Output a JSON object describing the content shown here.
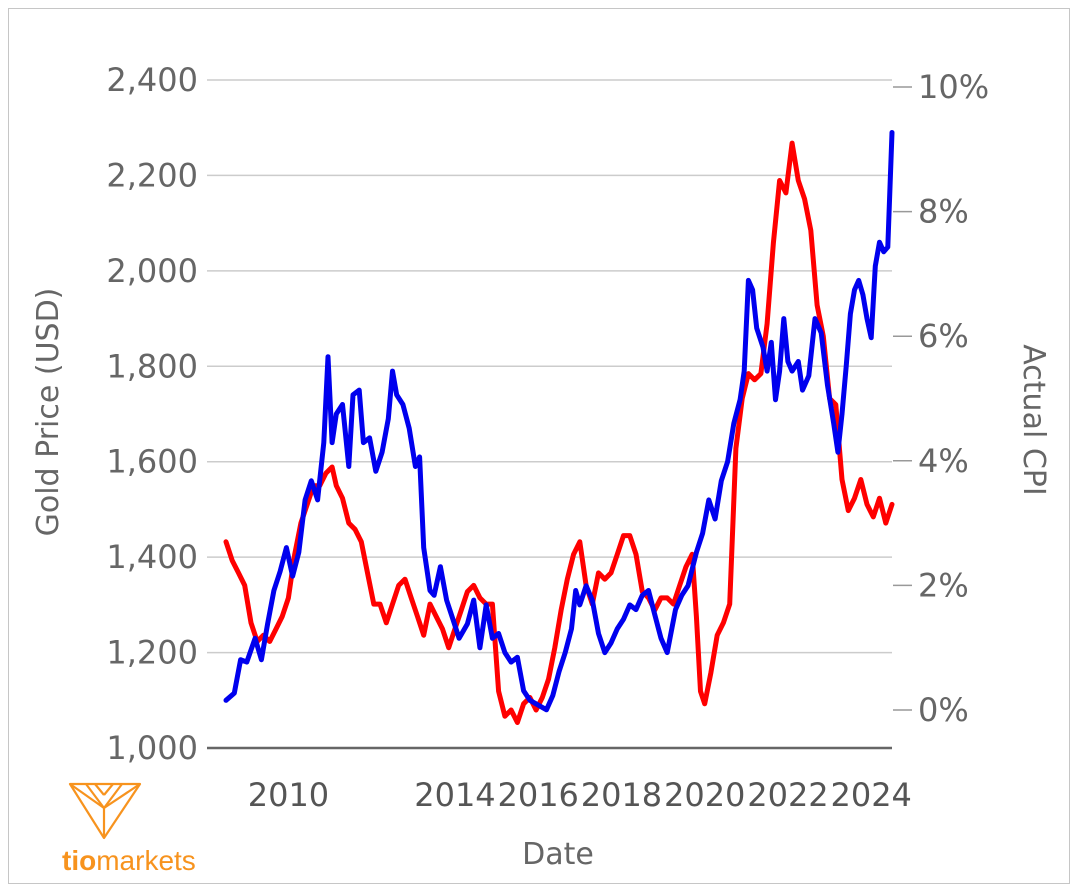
{
  "chart_data": {
    "type": "line",
    "xlabel": "Date",
    "ylabel_left": "Gold Price (USD)",
    "ylabel_right": "Actual CPI",
    "xlim": [
      2009,
      2024.6
    ],
    "ylim_left": [
      1000,
      2400
    ],
    "ylim_right": [
      -0.6,
      10
    ],
    "x_ticks": [
      "2010",
      "2014",
      "2016",
      "2018",
      "2020",
      "2022",
      "2024"
    ],
    "x_tick_values": [
      2010,
      2014,
      2016,
      2018,
      2020,
      2022,
      2024
    ],
    "y_left_ticks": [
      "1,000",
      "1,200",
      "1,400",
      "1,600",
      "1,800",
      "2,000",
      "2,200",
      "2,400"
    ],
    "y_left_tick_values": [
      1000,
      1200,
      1400,
      1600,
      1800,
      2000,
      2200,
      2400
    ],
    "y_right_ticks": [
      "0%",
      "2%",
      "4%",
      "6%",
      "8%",
      "10%"
    ],
    "y_right_tick_values": [
      0,
      2,
      4,
      6,
      8,
      10
    ],
    "grid": true,
    "series": [
      {
        "axis": "left",
        "color": "#0000ee",
        "points": [
          [
            2009.0,
            1100
          ],
          [
            2009.2,
            1115
          ],
          [
            2009.35,
            1185
          ],
          [
            2009.5,
            1180
          ],
          [
            2009.7,
            1230
          ],
          [
            2009.85,
            1185
          ],
          [
            2010.0,
            1260
          ],
          [
            2010.15,
            1330
          ],
          [
            2010.3,
            1370
          ],
          [
            2010.45,
            1420
          ],
          [
            2010.6,
            1360
          ],
          [
            2010.75,
            1410
          ],
          [
            2010.9,
            1520
          ],
          [
            2011.05,
            1560
          ],
          [
            2011.2,
            1520
          ],
          [
            2011.35,
            1640
          ],
          [
            2011.45,
            1820
          ],
          [
            2011.55,
            1640
          ],
          [
            2011.65,
            1700
          ],
          [
            2011.8,
            1720
          ],
          [
            2011.95,
            1590
          ],
          [
            2012.05,
            1740
          ],
          [
            2012.2,
            1750
          ],
          [
            2012.3,
            1640
          ],
          [
            2012.45,
            1650
          ],
          [
            2012.6,
            1580
          ],
          [
            2012.75,
            1620
          ],
          [
            2012.9,
            1690
          ],
          [
            2013.0,
            1790
          ],
          [
            2013.1,
            1740
          ],
          [
            2013.25,
            1720
          ],
          [
            2013.4,
            1670
          ],
          [
            2013.55,
            1590
          ],
          [
            2013.65,
            1610
          ],
          [
            2013.75,
            1420
          ],
          [
            2013.9,
            1330
          ],
          [
            2014.0,
            1320
          ],
          [
            2014.15,
            1380
          ],
          [
            2014.3,
            1310
          ],
          [
            2014.45,
            1270
          ],
          [
            2014.6,
            1230
          ],
          [
            2014.8,
            1260
          ],
          [
            2014.95,
            1310
          ],
          [
            2015.1,
            1210
          ],
          [
            2015.25,
            1300
          ],
          [
            2015.4,
            1230
          ],
          [
            2015.55,
            1240
          ],
          [
            2015.7,
            1200
          ],
          [
            2015.85,
            1180
          ],
          [
            2016.0,
            1190
          ],
          [
            2016.15,
            1120
          ],
          [
            2016.3,
            1100
          ],
          [
            2016.5,
            1090
          ],
          [
            2016.7,
            1080
          ],
          [
            2016.85,
            1110
          ],
          [
            2017.0,
            1160
          ],
          [
            2017.15,
            1200
          ],
          [
            2017.3,
            1250
          ],
          [
            2017.4,
            1330
          ],
          [
            2017.5,
            1300
          ],
          [
            2017.65,
            1340
          ],
          [
            2017.8,
            1310
          ],
          [
            2017.95,
            1240
          ],
          [
            2018.1,
            1200
          ],
          [
            2018.25,
            1220
          ],
          [
            2018.4,
            1250
          ],
          [
            2018.55,
            1270
          ],
          [
            2018.7,
            1300
          ],
          [
            2018.85,
            1290
          ],
          [
            2019.0,
            1320
          ],
          [
            2019.15,
            1330
          ],
          [
            2019.3,
            1280
          ],
          [
            2019.45,
            1230
          ],
          [
            2019.6,
            1200
          ],
          [
            2019.8,
            1290
          ],
          [
            2019.95,
            1320
          ],
          [
            2020.1,
            1340
          ],
          [
            2020.3,
            1410
          ],
          [
            2020.45,
            1450
          ],
          [
            2020.6,
            1520
          ],
          [
            2020.75,
            1480
          ],
          [
            2020.9,
            1560
          ],
          [
            2021.05,
            1600
          ],
          [
            2021.2,
            1680
          ],
          [
            2021.35,
            1730
          ],
          [
            2021.45,
            1790
          ],
          [
            2021.55,
            1980
          ],
          [
            2021.65,
            1960
          ],
          [
            2021.75,
            1880
          ],
          [
            2021.9,
            1840
          ],
          [
            2022.0,
            1790
          ],
          [
            2022.1,
            1850
          ],
          [
            2022.2,
            1730
          ],
          [
            2022.3,
            1790
          ],
          [
            2022.4,
            1900
          ],
          [
            2022.5,
            1810
          ],
          [
            2022.6,
            1790
          ],
          [
            2022.75,
            1810
          ],
          [
            2022.85,
            1750
          ],
          [
            2023.0,
            1780
          ],
          [
            2023.15,
            1900
          ],
          [
            2023.3,
            1870
          ],
          [
            2023.45,
            1760
          ],
          [
            2023.6,
            1680
          ],
          [
            2023.7,
            1620
          ],
          [
            2023.8,
            1700
          ],
          [
            2023.9,
            1800
          ],
          [
            2024.0,
            1910
          ],
          [
            2024.1,
            1960
          ],
          [
            2024.2,
            1980
          ],
          [
            2024.3,
            1950
          ],
          [
            2024.4,
            1900
          ],
          [
            2024.5,
            1860
          ],
          [
            2024.6,
            2010
          ],
          [
            2024.7,
            2060
          ],
          [
            2024.8,
            2040
          ],
          [
            2024.9,
            2050
          ],
          [
            2025.0,
            2290
          ]
        ]
      },
      {
        "axis": "right",
        "color": "#ff0000",
        "points": [
          [
            2009.0,
            2.7
          ],
          [
            2009.15,
            2.4
          ],
          [
            2009.3,
            2.2
          ],
          [
            2009.45,
            2.0
          ],
          [
            2009.6,
            1.4
          ],
          [
            2009.75,
            1.1
          ],
          [
            2009.9,
            1.2
          ],
          [
            2010.05,
            1.1
          ],
          [
            2010.2,
            1.3
          ],
          [
            2010.35,
            1.5
          ],
          [
            2010.5,
            1.8
          ],
          [
            2010.65,
            2.5
          ],
          [
            2010.8,
            3.0
          ],
          [
            2010.95,
            3.3
          ],
          [
            2011.1,
            3.6
          ],
          [
            2011.25,
            3.6
          ],
          [
            2011.4,
            3.8
          ],
          [
            2011.55,
            3.9
          ],
          [
            2011.65,
            3.6
          ],
          [
            2011.8,
            3.4
          ],
          [
            2011.95,
            3.0
          ],
          [
            2012.1,
            2.9
          ],
          [
            2012.25,
            2.7
          ],
          [
            2012.4,
            2.2
          ],
          [
            2012.55,
            1.7
          ],
          [
            2012.7,
            1.7
          ],
          [
            2012.85,
            1.4
          ],
          [
            2013.0,
            1.7
          ],
          [
            2013.15,
            2.0
          ],
          [
            2013.3,
            2.1
          ],
          [
            2013.45,
            1.8
          ],
          [
            2013.6,
            1.5
          ],
          [
            2013.75,
            1.2
          ],
          [
            2013.9,
            1.7
          ],
          [
            2014.05,
            1.5
          ],
          [
            2014.2,
            1.3
          ],
          [
            2014.35,
            1.0
          ],
          [
            2014.5,
            1.3
          ],
          [
            2014.65,
            1.6
          ],
          [
            2014.8,
            1.9
          ],
          [
            2014.95,
            2.0
          ],
          [
            2015.1,
            1.8
          ],
          [
            2015.25,
            1.7
          ],
          [
            2015.4,
            1.7
          ],
          [
            2015.55,
            0.3
          ],
          [
            2015.7,
            -0.1
          ],
          [
            2015.85,
            0.0
          ],
          [
            2016.0,
            -0.2
          ],
          [
            2016.15,
            0.1
          ],
          [
            2016.3,
            0.2
          ],
          [
            2016.45,
            0.0
          ],
          [
            2016.6,
            0.2
          ],
          [
            2016.75,
            0.5
          ],
          [
            2016.9,
            1.0
          ],
          [
            2017.05,
            1.6
          ],
          [
            2017.2,
            2.1
          ],
          [
            2017.35,
            2.5
          ],
          [
            2017.5,
            2.7
          ],
          [
            2017.65,
            2.0
          ],
          [
            2017.8,
            1.7
          ],
          [
            2017.95,
            2.2
          ],
          [
            2018.1,
            2.1
          ],
          [
            2018.25,
            2.2
          ],
          [
            2018.4,
            2.5
          ],
          [
            2018.55,
            2.8
          ],
          [
            2018.7,
            2.8
          ],
          [
            2018.85,
            2.5
          ],
          [
            2019.0,
            1.9
          ],
          [
            2019.15,
            1.8
          ],
          [
            2019.3,
            1.6
          ],
          [
            2019.45,
            1.8
          ],
          [
            2019.6,
            1.8
          ],
          [
            2019.75,
            1.7
          ],
          [
            2019.9,
            2.0
          ],
          [
            2020.05,
            2.3
          ],
          [
            2020.2,
            2.5
          ],
          [
            2020.3,
            1.5
          ],
          [
            2020.4,
            0.3
          ],
          [
            2020.5,
            0.1
          ],
          [
            2020.65,
            0.6
          ],
          [
            2020.8,
            1.2
          ],
          [
            2020.95,
            1.4
          ],
          [
            2021.1,
            1.7
          ],
          [
            2021.25,
            4.2
          ],
          [
            2021.4,
            5.0
          ],
          [
            2021.55,
            5.4
          ],
          [
            2021.7,
            5.3
          ],
          [
            2021.85,
            5.4
          ],
          [
            2022.0,
            6.2
          ],
          [
            2022.15,
            7.5
          ],
          [
            2022.3,
            8.5
          ],
          [
            2022.45,
            8.3
          ],
          [
            2022.6,
            9.1
          ],
          [
            2022.75,
            8.5
          ],
          [
            2022.9,
            8.2
          ],
          [
            2023.05,
            7.7
          ],
          [
            2023.2,
            6.5
          ],
          [
            2023.35,
            6.0
          ],
          [
            2023.5,
            5.0
          ],
          [
            2023.65,
            4.9
          ],
          [
            2023.8,
            3.7
          ],
          [
            2023.95,
            3.2
          ],
          [
            2024.1,
            3.4
          ],
          [
            2024.25,
            3.7
          ],
          [
            2024.4,
            3.3
          ],
          [
            2024.55,
            3.1
          ],
          [
            2024.7,
            3.4
          ],
          [
            2024.85,
            3.0
          ],
          [
            2025.0,
            3.3
          ]
        ]
      }
    ]
  },
  "logo": {
    "text_bold": "tio",
    "text_light": "markets",
    "color": "#f7931e"
  }
}
